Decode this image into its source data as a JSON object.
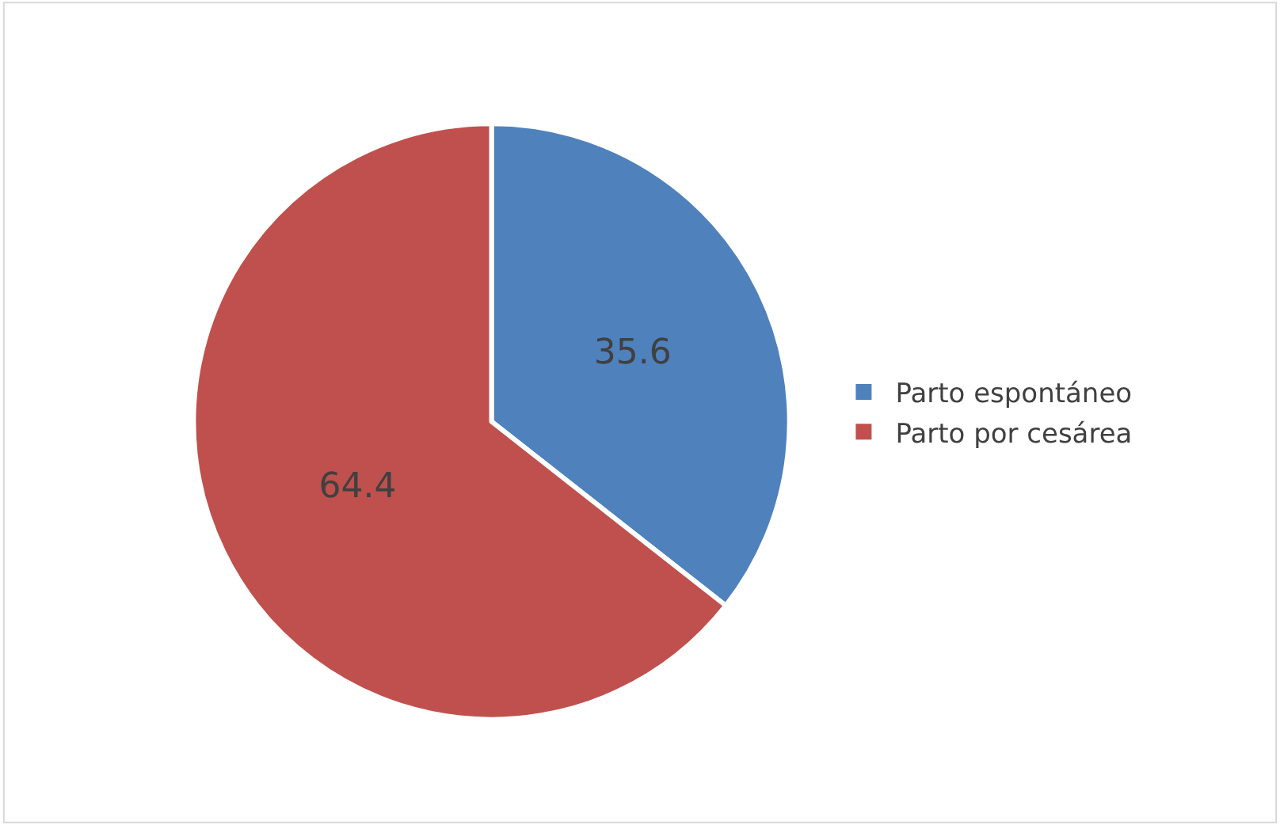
{
  "chart_data": {
    "type": "pie",
    "categories": [
      "Parto espontáneo",
      "Parto por cesárea"
    ],
    "values": [
      35.6,
      64.4
    ],
    "colors": [
      "#4f81bd",
      "#c0504d"
    ],
    "data_labels": true,
    "legend": "right"
  }
}
